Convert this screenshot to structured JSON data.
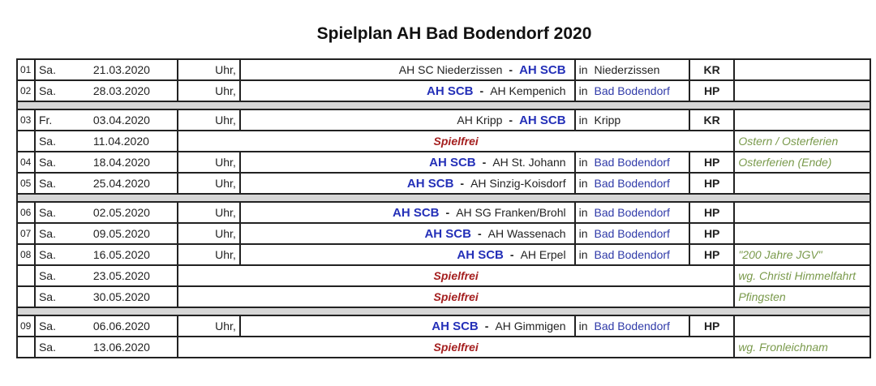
{
  "title": "Spielplan AH Bad Bodendorf 2020",
  "uhr_label": "Uhr,",
  "in_label": "in",
  "dash": "-",
  "rows": [
    {
      "type": "game",
      "nr": "01",
      "day": "Sa.",
      "date": "21.03.2020",
      "home": "AH SC Niederzissen",
      "away": "AH SCB",
      "home_is_scb": false,
      "location": "Niederzissen",
      "code": "KR",
      "note": ""
    },
    {
      "type": "game",
      "nr": "02",
      "day": "Sa.",
      "date": "28.03.2020",
      "home": "AH SCB",
      "away": "AH Kempenich",
      "home_is_scb": true,
      "location": "Bad Bodendorf",
      "code": "HP",
      "note": ""
    },
    {
      "type": "sep"
    },
    {
      "type": "game",
      "nr": "03",
      "day": "Fr.",
      "date": "03.04.2020",
      "home": "AH Kripp",
      "away": "AH SCB",
      "home_is_scb": false,
      "location": "Kripp",
      "code": "KR",
      "note": ""
    },
    {
      "type": "free",
      "nr": "",
      "day": "Sa.",
      "date": "11.04.2020",
      "text": "Spielfrei",
      "note": "Ostern / Osterferien"
    },
    {
      "type": "game",
      "nr": "04",
      "day": "Sa.",
      "date": "18.04.2020",
      "home": "AH SCB",
      "away": "AH St. Johann",
      "home_is_scb": true,
      "location": "Bad Bodendorf",
      "code": "HP",
      "note": "Osterferien (Ende)"
    },
    {
      "type": "game",
      "nr": "05",
      "day": "Sa.",
      "date": "25.04.2020",
      "home": "AH SCB",
      "away": "AH Sinzig-Koisdorf",
      "home_is_scb": true,
      "location": "Bad Bodendorf",
      "code": "HP",
      "note": ""
    },
    {
      "type": "sep"
    },
    {
      "type": "game",
      "nr": "06",
      "day": "Sa.",
      "date": "02.05.2020",
      "home": "AH SCB",
      "away": "AH SG Franken/Brohl",
      "home_is_scb": true,
      "location": "Bad Bodendorf",
      "code": "HP",
      "note": ""
    },
    {
      "type": "game",
      "nr": "07",
      "day": "Sa.",
      "date": "09.05.2020",
      "home": "AH SCB",
      "away": "AH Wassenach",
      "home_is_scb": true,
      "location": "Bad Bodendorf",
      "code": "HP",
      "note": ""
    },
    {
      "type": "game",
      "nr": "08",
      "day": "Sa.",
      "date": "16.05.2020",
      "home": "AH SCB",
      "away": "AH Erpel",
      "home_is_scb": true,
      "location": "Bad Bodendorf",
      "code": "HP",
      "note": "\"200 Jahre JGV\""
    },
    {
      "type": "free",
      "nr": "",
      "day": "Sa.",
      "date": "23.05.2020",
      "text": "Spielfrei",
      "note": "wg. Christi Himmelfahrt"
    },
    {
      "type": "free",
      "nr": "",
      "day": "Sa.",
      "date": "30.05.2020",
      "text": "Spielfrei",
      "note": "Pfingsten"
    },
    {
      "type": "sep"
    },
    {
      "type": "game",
      "nr": "09",
      "day": "Sa.",
      "date": "06.06.2020",
      "home": "AH SCB",
      "away": "AH Gimmigen",
      "home_is_scb": true,
      "location": "Bad Bodendorf",
      "code": "HP",
      "note": ""
    },
    {
      "type": "free",
      "nr": "",
      "day": "Sa.",
      "date": "13.06.2020",
      "text": "Spielfrei",
      "note": "wg. Fronleichnam"
    }
  ]
}
